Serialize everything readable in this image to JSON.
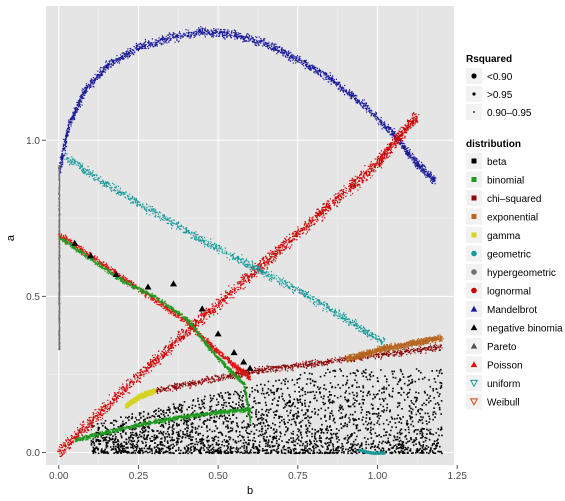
{
  "chart_data": {
    "type": "scatter",
    "xlabel": "b",
    "ylabel": "a",
    "xlim": [
      -0.04,
      1.24
    ],
    "ylim": [
      -0.04,
      1.43
    ],
    "x_ticks": [
      {
        "value": 0.0,
        "label": "0.00"
      },
      {
        "value": 0.25,
        "label": "0.25"
      },
      {
        "value": 0.5,
        "label": "0.50"
      },
      {
        "value": 0.75,
        "label": "0.75"
      },
      {
        "value": 1.0,
        "label": "1.00"
      },
      {
        "value": 1.25,
        "label": "1.25"
      }
    ],
    "y_ticks": [
      {
        "value": 0.0,
        "label": "0.0"
      },
      {
        "value": 0.5,
        "label": "0.5"
      },
      {
        "value": 1.0,
        "label": "1.0"
      }
    ],
    "grid": true,
    "legend_position": "right",
    "legend_rsquared": {
      "title": "Rsquared",
      "entries": [
        {
          "label": "<0.90",
          "size": "large"
        },
        {
          "label": ">0.95",
          "size": "medium"
        },
        {
          "label": "0.90–0.95",
          "size": "small"
        }
      ]
    },
    "legend_distribution": {
      "title": "distribution",
      "entries": [
        {
          "label": "beta",
          "color": "#000000",
          "shape": "square"
        },
        {
          "label": "binomial",
          "color": "#1f9a1f",
          "shape": "square"
        },
        {
          "label": "chi–squared",
          "color": "#8b0a0a",
          "shape": "square"
        },
        {
          "label": "exponential",
          "color": "#b5651d",
          "shape": "square"
        },
        {
          "label": "gamma",
          "color": "#d4d420",
          "shape": "square"
        },
        {
          "label": "geometric",
          "color": "#1a9a9a",
          "shape": "circle"
        },
        {
          "label": "hypergeometric",
          "color": "#707070",
          "shape": "circle"
        },
        {
          "label": "lognormal",
          "color": "#cc0000",
          "shape": "circle"
        },
        {
          "label": "Mandelbrot",
          "color": "#1a1a9a",
          "shape": "triangle"
        },
        {
          "label": "negative binomia",
          "color": "#000000",
          "shape": "triangle"
        },
        {
          "label": "Pareto",
          "color": "#555555",
          "shape": "triangle"
        },
        {
          "label": "Poisson",
          "color": "#e01010",
          "shape": "triangle"
        },
        {
          "label": "uniform",
          "color": "#1a9a9a",
          "shape": "triangle-down"
        },
        {
          "label": "Weibull",
          "color": "#d04010",
          "shape": "triangle-down"
        }
      ]
    },
    "series": [
      {
        "ref": "Mandelbrot",
        "color": "#1a1a9a",
        "band": 0.02,
        "x": [
          0.0,
          0.03,
          0.08,
          0.15,
          0.25,
          0.35,
          0.45,
          0.55,
          0.65,
          0.75,
          0.85,
          0.95,
          1.05,
          1.12,
          1.18
        ],
        "y": [
          0.9,
          1.05,
          1.16,
          1.24,
          1.3,
          1.33,
          1.35,
          1.34,
          1.31,
          1.26,
          1.2,
          1.12,
          1.02,
          0.93,
          0.87
        ]
      },
      {
        "ref": "lognormal",
        "color": "#cc0000",
        "band": 0.03,
        "x": [
          0.0,
          0.2,
          0.4,
          0.6,
          0.8,
          1.0,
          1.12
        ],
        "y": [
          0.0,
          0.2,
          0.39,
          0.57,
          0.75,
          0.93,
          1.08
        ]
      },
      {
        "ref": "geometric",
        "color": "#1a9a9a",
        "band": 0.02,
        "x": [
          0.02,
          0.15,
          0.3,
          0.45,
          0.6,
          0.75,
          0.9,
          1.02
        ],
        "y": [
          0.95,
          0.86,
          0.77,
          0.68,
          0.6,
          0.52,
          0.43,
          0.35
        ]
      },
      {
        "ref": "geometric-cluster",
        "color": "#1a9a9a",
        "band": 0.005,
        "x": [
          0.94,
          0.98,
          1.02
        ],
        "y": [
          0.01,
          0.0,
          0.0
        ]
      },
      {
        "ref": "hypergeometric",
        "color": "#707070",
        "band": 0.005,
        "x": [
          0.0,
          0.0,
          0.0
        ],
        "y": [
          0.33,
          0.6,
          0.92
        ]
      },
      {
        "ref": "chi–squared",
        "color": "#8b0a0a",
        "band": 0.015,
        "x": [
          0.3,
          0.45,
          0.6,
          0.75,
          0.9,
          1.05,
          1.2
        ],
        "y": [
          0.2,
          0.23,
          0.26,
          0.28,
          0.3,
          0.32,
          0.34
        ]
      },
      {
        "ref": "exponential",
        "color": "#b5651d",
        "band": 0.015,
        "x": [
          0.9,
          1.0,
          1.1,
          1.2
        ],
        "y": [
          0.3,
          0.33,
          0.35,
          0.37
        ]
      },
      {
        "ref": "gamma",
        "color": "#d4d420",
        "band": 0.012,
        "x": [
          0.21,
          0.25,
          0.3
        ],
        "y": [
          0.15,
          0.18,
          0.2
        ]
      },
      {
        "ref": "Poisson",
        "color": "#e01010",
        "band": 0.015,
        "x": [
          0.0,
          0.1,
          0.2,
          0.3,
          0.4,
          0.48,
          0.55,
          0.6
        ],
        "y": [
          0.7,
          0.63,
          0.56,
          0.49,
          0.42,
          0.34,
          0.28,
          0.24
        ]
      },
      {
        "ref": "binomial",
        "color": "#1f9a1f",
        "band": 0.01,
        "x": [
          0.0,
          0.1,
          0.2,
          0.3,
          0.4,
          0.46,
          0.52,
          0.58,
          0.6
        ],
        "y": [
          0.69,
          0.62,
          0.55,
          0.5,
          0.43,
          0.35,
          0.28,
          0.22,
          0.1
        ]
      },
      {
        "ref": "binomial-lower",
        "color": "#1f9a1f",
        "band": 0.01,
        "x": [
          0.05,
          0.2,
          0.35,
          0.5,
          0.6
        ],
        "y": [
          0.04,
          0.08,
          0.11,
          0.13,
          0.14
        ]
      }
    ],
    "clouds": [
      {
        "ref": "beta",
        "color": "#000000",
        "xmin": 0.1,
        "xmax": 1.2,
        "ymin": 0.0,
        "ymax": 0.27
      }
    ],
    "markers": [
      {
        "ref": "negative binomia",
        "color": "#000000",
        "x": [
          0.05,
          0.1,
          0.18,
          0.28,
          0.36,
          0.45,
          0.5,
          0.55,
          0.58,
          0.6
        ],
        "y": [
          0.67,
          0.63,
          0.57,
          0.53,
          0.54,
          0.46,
          0.38,
          0.32,
          0.29,
          0.27
        ]
      }
    ]
  }
}
